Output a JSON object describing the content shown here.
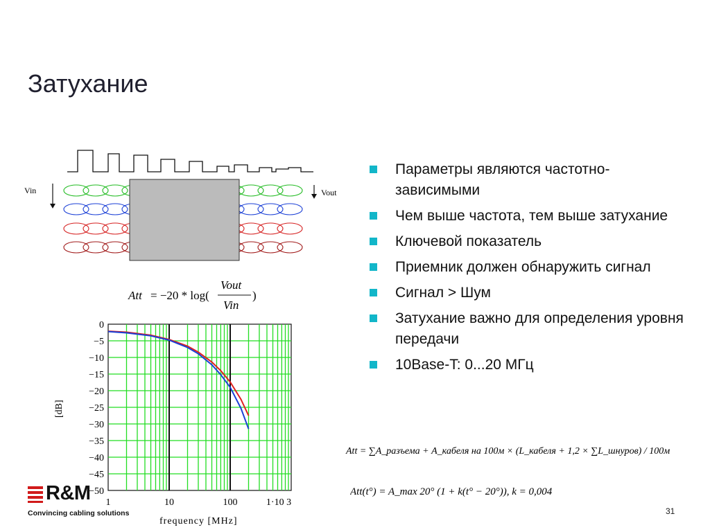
{
  "slide": {
    "title": "Затухание",
    "page_number": "31"
  },
  "bullets": [
    "Параметры являются частотно-зависимыми",
    "Чем выше частота, тем выше затухание",
    "Ключевой показатель",
    "Приемник должен обнаружить сигнал",
    "Сигнал > Шум",
    "Затухание важно для определения уровня передачи",
    "10Base-T: 0...20 МГц"
  ],
  "diagram": {
    "vin_label": "Vin",
    "vout_label": "Vout",
    "pair_colors": [
      "#22bb22",
      "#1a3fd6",
      "#d62020",
      "#a01818"
    ],
    "box_color": "#bbbbbb"
  },
  "formula_att": {
    "lhs": "Att",
    "eq": "= −20 * log(",
    "numerator": "Vout",
    "denominator": "Vin",
    "close": ")"
  },
  "formula_total": "Att = ∑A_разъема + A_кабеля на 100м × (L_кабеля + 1,2 × ∑L_шнуров) / 100м",
  "formula_temp": "Att(t°) = A_max 20° (1 + k(t° − 20°)),   k = 0,004",
  "logo": {
    "text": "R&M",
    "slogan": "Convincing cabling solutions",
    "color": "#d11a1a"
  },
  "chart_data": {
    "type": "line",
    "xscale": "log",
    "xlabel": "frequency [MHz]",
    "ylabel": "[dB]",
    "xlim": [
      1,
      1000
    ],
    "ylim": [
      -50,
      0
    ],
    "grid": true,
    "grid_color": "#22dd22",
    "x_tick_labels": [
      "1",
      "10",
      "100",
      "1·10 3"
    ],
    "y_tick_labels": [
      "0",
      "−5",
      "−10",
      "−15",
      "−20",
      "−25",
      "−30",
      "−35",
      "−40",
      "−45",
      "−50"
    ],
    "series": [
      {
        "color": "#e02020",
        "x": [
          1,
          2,
          5,
          10,
          20,
          30,
          50,
          70,
          100,
          150,
          200
        ],
        "y": [
          -2.1,
          -2.4,
          -3.3,
          -4.6,
          -6.6,
          -8.4,
          -11.4,
          -14.0,
          -17.4,
          -22.6,
          -27.5
        ]
      },
      {
        "color": "#1a3fd6",
        "x": [
          1,
          2,
          5,
          10,
          20,
          30,
          50,
          70,
          100,
          150,
          200
        ],
        "y": [
          -2.2,
          -2.6,
          -3.5,
          -4.8,
          -7.0,
          -8.9,
          -12.2,
          -15.2,
          -19.0,
          -25.3,
          -31.5
        ]
      }
    ]
  }
}
